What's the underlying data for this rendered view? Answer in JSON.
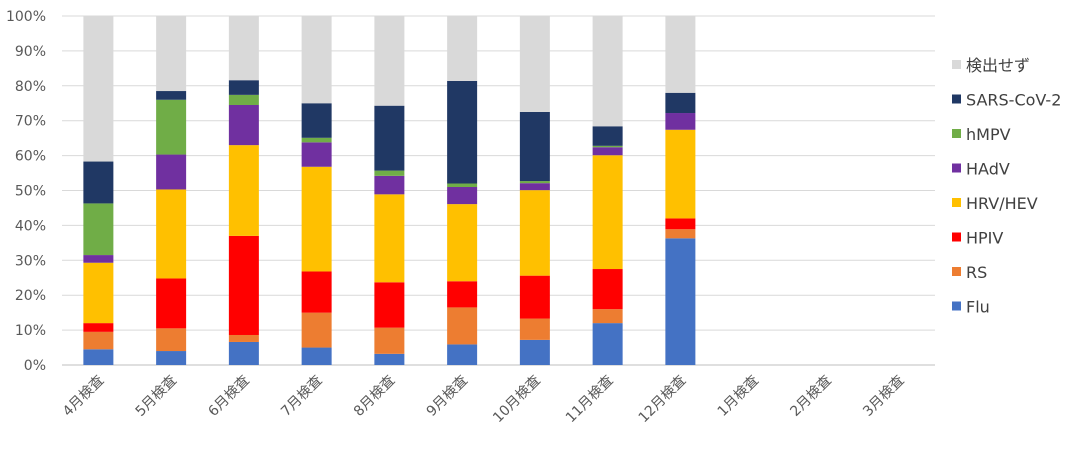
{
  "chart_data": {
    "type": "bar",
    "stacked": true,
    "categories": [
      "4月検査",
      "5月検査",
      "6月検査",
      "7月検査",
      "8月検査",
      "9月検査",
      "10月検査",
      "11月検査",
      "12月検査",
      "1月検査",
      "2月検査",
      "3月検査"
    ],
    "ylim": [
      0,
      100
    ],
    "yticks": [
      "0%",
      "10%",
      "20%",
      "30%",
      "40%",
      "50%",
      "60%",
      "70%",
      "80%",
      "90%",
      "100%"
    ],
    "grid": true,
    "legend_position": "right",
    "series": [
      {
        "name": "Flu",
        "color": "#4472C4",
        "values": [
          4.5,
          4.0,
          6.6,
          5.0,
          3.2,
          5.9,
          7.2,
          12.0,
          36.3,
          null,
          null,
          null
        ]
      },
      {
        "name": "RS",
        "color": "#ED7D31",
        "values": [
          5.0,
          6.5,
          2.0,
          10.0,
          7.5,
          10.6,
          6.1,
          4.0,
          2.6,
          null,
          null,
          null
        ]
      },
      {
        "name": "HPIV",
        "color": "#FF0000",
        "values": [
          2.5,
          14.3,
          28.4,
          11.8,
          13.0,
          7.5,
          12.3,
          11.5,
          3.1,
          null,
          null,
          null
        ]
      },
      {
        "name": "HRV/HEV",
        "color": "#FFC000",
        "values": [
          17.3,
          25.5,
          26.0,
          30.0,
          25.2,
          22.1,
          24.5,
          32.6,
          25.4,
          null,
          null,
          null
        ]
      },
      {
        "name": "HAdV",
        "color": "#7030A0",
        "values": [
          2.2,
          10.0,
          11.5,
          7.0,
          5.3,
          4.9,
          2.0,
          2.3,
          4.8,
          null,
          null,
          null
        ]
      },
      {
        "name": "hMPV",
        "color": "#70AD47",
        "values": [
          14.8,
          15.7,
          2.9,
          1.3,
          1.5,
          1.0,
          0.6,
          0.4,
          0.0,
          null,
          null,
          null
        ]
      },
      {
        "name": "SARS-CoV-2",
        "color": "#203864",
        "values": [
          12.0,
          2.5,
          4.2,
          9.9,
          18.6,
          29.4,
          19.8,
          5.6,
          5.8,
          null,
          null,
          null
        ]
      },
      {
        "name": "検出せず",
        "color": "#D9D9D9",
        "values": [
          41.7,
          21.5,
          18.4,
          25.0,
          25.7,
          18.6,
          27.5,
          31.6,
          22.0,
          null,
          null,
          null
        ]
      }
    ]
  }
}
